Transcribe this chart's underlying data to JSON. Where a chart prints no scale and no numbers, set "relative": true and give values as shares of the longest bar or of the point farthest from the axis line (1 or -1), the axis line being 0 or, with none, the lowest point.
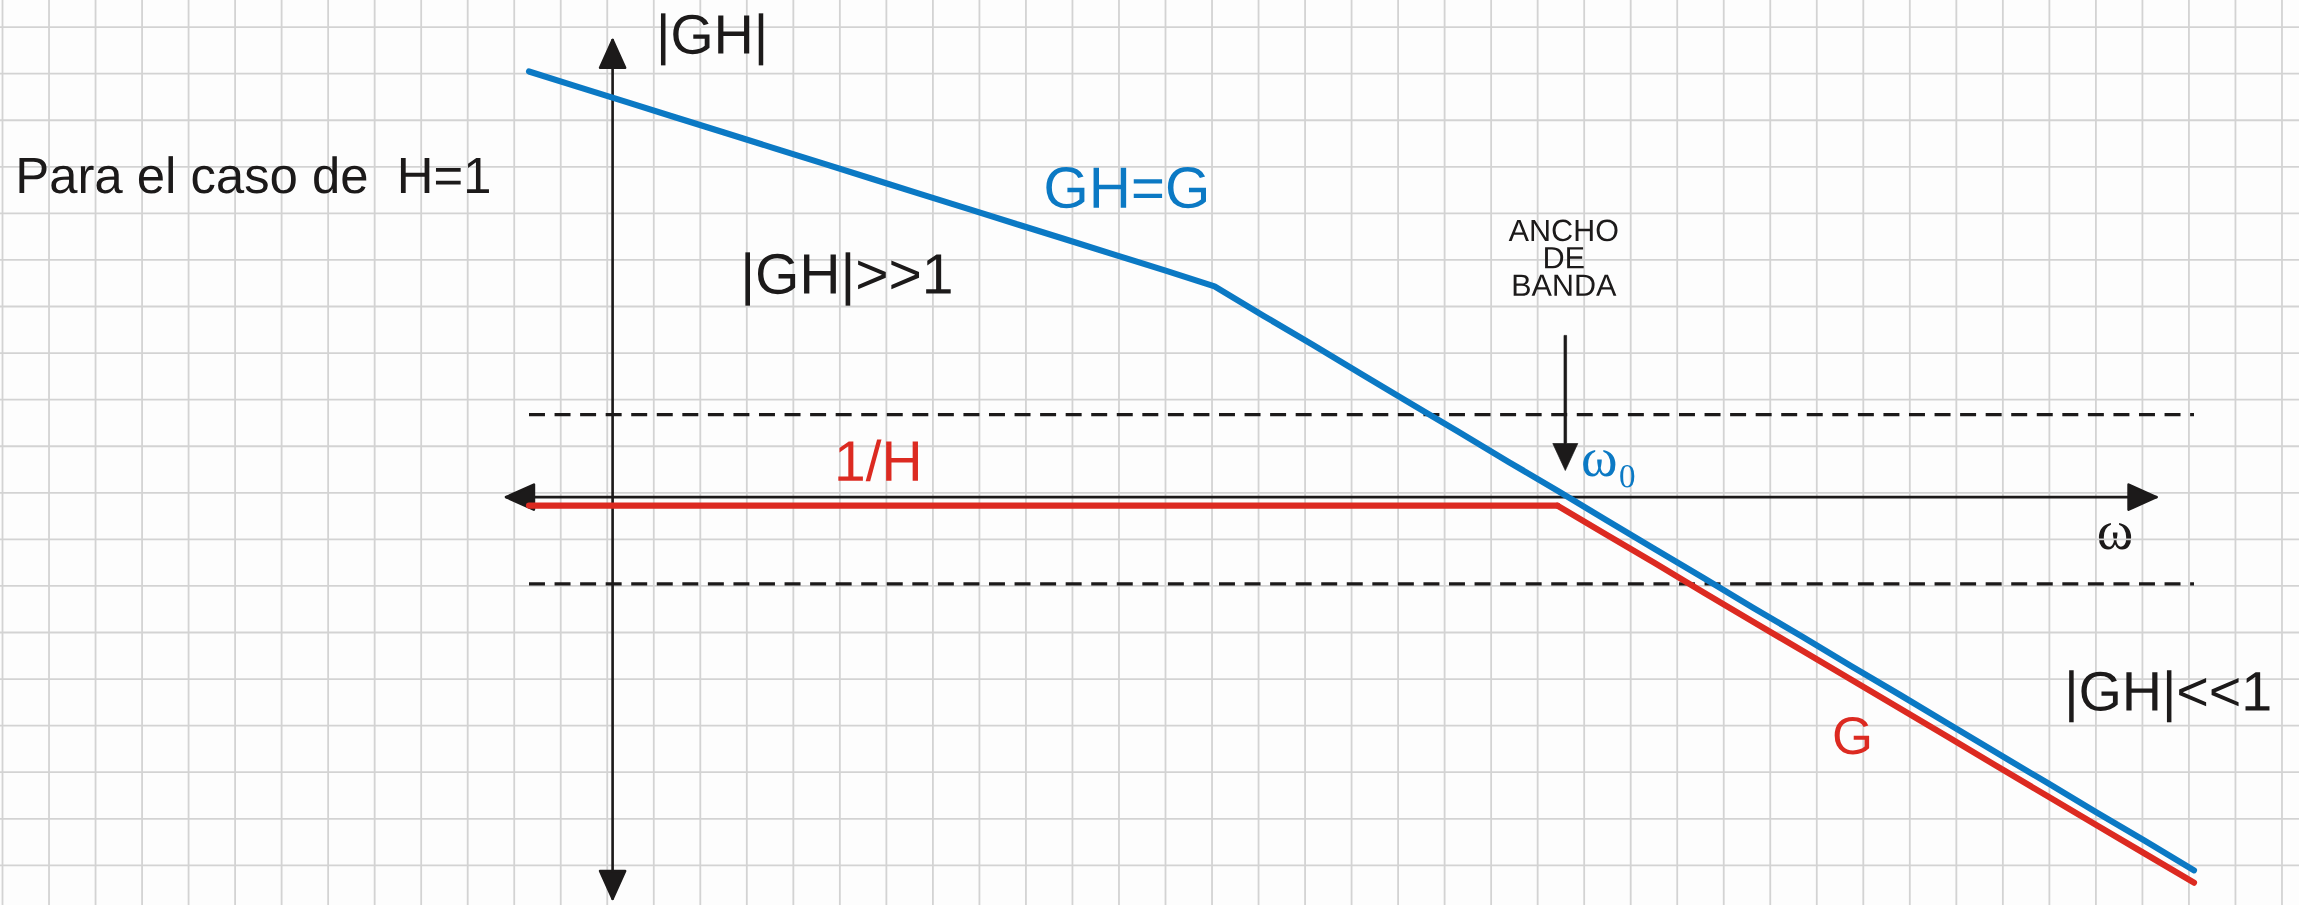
{
  "chart_data": {
    "type": "line",
    "relative": true,
    "grid": true,
    "xlabel": "ω",
    "ylabel": "|GH|",
    "categories": [
      null,
      null,
      null,
      null,
      null,
      null,
      null,
      null,
      null,
      null,
      null,
      null,
      null,
      null,
      null,
      null,
      null,
      null,
      null,
      null,
      null,
      null,
      null,
      null,
      null,
      null,
      null,
      null,
      null,
      null,
      null,
      null,
      null,
      null,
      null
    ],
    "series": [
      {
        "name": "GH=G",
        "color": "#0b79c4",
        "values": [
          1.0,
          0.964,
          0.928,
          0.892,
          0.856,
          0.82,
          0.784,
          0.748,
          0.712,
          0.676,
          0.64,
          0.604,
          0.568,
          0.532,
          0.495,
          0.426,
          0.358,
          0.289,
          0.22,
          0.152,
          0.083,
          0.015,
          -0.054,
          -0.123,
          -0.191,
          -0.26,
          -0.328,
          -0.397,
          -0.465,
          -0.534,
          -0.603,
          -0.671,
          -0.74,
          -0.808,
          -0.877
        ]
      },
      {
        "name": "1/H",
        "color": "#dc2a21",
        "values": [
          -0.02,
          -0.02,
          -0.02,
          -0.02,
          -0.02,
          -0.02,
          -0.02,
          -0.02,
          -0.02,
          -0.02,
          -0.02,
          -0.02,
          -0.02,
          -0.02,
          -0.02,
          -0.02,
          -0.02,
          -0.02,
          -0.02,
          -0.02,
          -0.02,
          -0.02,
          null,
          null,
          null,
          null,
          null,
          null,
          null,
          null,
          null,
          null,
          null,
          null,
          null
        ]
      },
      {
        "name": "G",
        "color": "#dc2a21",
        "values": [
          null,
          null,
          null,
          null,
          null,
          null,
          null,
          null,
          null,
          null,
          null,
          null,
          null,
          null,
          null,
          null,
          null,
          null,
          null,
          null,
          null,
          -0.02,
          -0.088,
          -0.156,
          -0.225,
          -0.293,
          -0.361,
          -0.429,
          -0.497,
          -0.565,
          -0.634,
          -0.702,
          -0.77,
          -0.838,
          -0.906
        ]
      }
    ],
    "ref_lines": [
      {
        "axis": "y",
        "value": 0.194,
        "color": "#1c1a1a",
        "line_style": "dashed"
      },
      {
        "axis": "y",
        "value": -0.204,
        "color": "#1c1a1a",
        "line_style": "dashed"
      }
    ],
    "annotations": [
      "Para el caso de  H=1",
      "|GH|>>1",
      "ANCHO\nDE\nBANDA",
      "ω₀",
      "|GH|<<1"
    ]
  }
}
